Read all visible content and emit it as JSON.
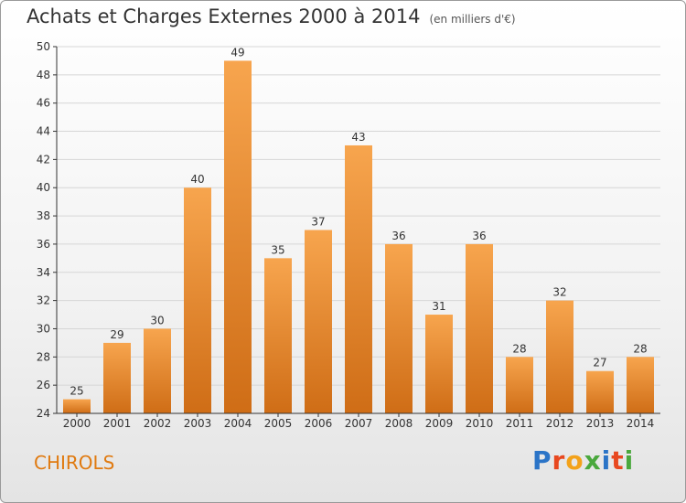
{
  "header": {
    "title": "Achats et Charges Externes 2000 à 2014",
    "subtitle": "(en milliers d'€)"
  },
  "footer": {
    "city": "CHIROLS",
    "logo": "Proxiti",
    "logo_colors": [
      "#2b74c7",
      "#e8481f",
      "#f3a21a",
      "#4aa83d",
      "#2b74c7",
      "#e8481f",
      "#4aa83d"
    ]
  },
  "colors": {
    "bar_top": "#f7a54e",
    "bar_bottom": "#cf6d16",
    "grid": "#d6d6d6",
    "axis": "#333333",
    "city": "#e07a10"
  },
  "chart_data": {
    "type": "bar",
    "categories": [
      "2000",
      "2001",
      "2002",
      "2003",
      "2004",
      "2005",
      "2006",
      "2007",
      "2008",
      "2009",
      "2010",
      "2011",
      "2012",
      "2013",
      "2014"
    ],
    "values": [
      25,
      29,
      30,
      40,
      49,
      35,
      37,
      43,
      36,
      31,
      36,
      28,
      32,
      27,
      28
    ],
    "ylim": [
      24,
      50
    ],
    "yticks": [
      24,
      26,
      28,
      30,
      32,
      34,
      36,
      38,
      40,
      42,
      44,
      46,
      48,
      50
    ],
    "grid": true,
    "data_labels": true
  }
}
